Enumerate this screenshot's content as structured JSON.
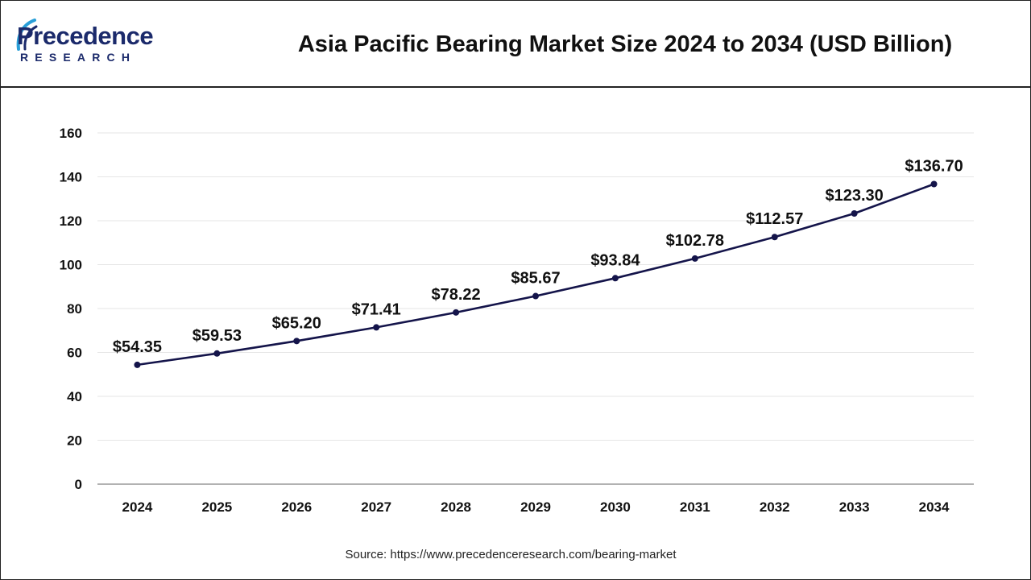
{
  "header": {
    "logo_word": "Precedence",
    "logo_sub": "RESEARCH",
    "title": "Asia Pacific Bearing Market Size 2024 to 2034 (USD Billion)"
  },
  "footer": {
    "source": "Source: https://www.precedenceresearch.com/bearing-market"
  },
  "colors": {
    "line": "#14144a",
    "brand": "#1b2a6b",
    "grid": "#e6e6e6",
    "text": "#111111"
  },
  "chart_data": {
    "type": "line",
    "title": "Asia Pacific Bearing Market Size 2024 to 2034 (USD Billion)",
    "xlabel": "",
    "ylabel": "",
    "x": [
      "2024",
      "2025",
      "2026",
      "2027",
      "2028",
      "2029",
      "2030",
      "2031",
      "2032",
      "2033",
      "2034"
    ],
    "series": [
      {
        "values": [
          54.35,
          59.53,
          65.2,
          71.41,
          78.22,
          85.67,
          93.84,
          102.78,
          112.57,
          123.3,
          136.7
        ],
        "labels": [
          "$54.35",
          "$59.53",
          "$65.20",
          "$71.41",
          "$78.22",
          "$85.67",
          "$93.84",
          "$102.78",
          "$112.57",
          "$123.30",
          "$136.70"
        ]
      }
    ],
    "ylim": [
      0,
      160
    ],
    "yticks": [
      "0",
      "20",
      "40",
      "60",
      "80",
      "100",
      "120",
      "140",
      "160"
    ],
    "grid": true,
    "legend": "none"
  }
}
